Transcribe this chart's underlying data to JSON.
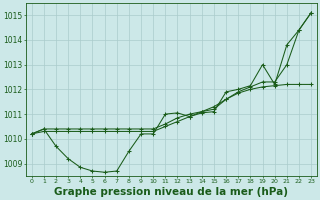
{
  "x": [
    0,
    1,
    2,
    3,
    4,
    5,
    6,
    7,
    8,
    9,
    10,
    11,
    12,
    13,
    14,
    15,
    16,
    17,
    18,
    19,
    20,
    21,
    22,
    23
  ],
  "series": {
    "s1": [
      1010.2,
      1010.4,
      1009.7,
      1009.2,
      1008.85,
      1008.7,
      1008.65,
      1008.7,
      1009.5,
      1010.2,
      1010.2,
      1011.0,
      1011.05,
      1010.9,
      1011.05,
      1011.1,
      1011.9,
      1012.0,
      1012.15,
      1013.0,
      1012.2,
      1013.8,
      1014.4,
      1015.1
    ],
    "s2": [
      1010.2,
      1010.3,
      1010.3,
      1010.3,
      1010.3,
      1010.3,
      1010.3,
      1010.3,
      1010.3,
      1010.3,
      1010.3,
      1010.5,
      1010.7,
      1010.9,
      1011.1,
      1011.3,
      1011.6,
      1011.85,
      1012.0,
      1012.1,
      1012.15,
      1012.2,
      1012.2,
      1012.2
    ],
    "s3": [
      1010.2,
      1010.4,
      1010.4,
      1010.4,
      1010.4,
      1010.4,
      1010.4,
      1010.4,
      1010.4,
      1010.4,
      1010.4,
      1010.6,
      1010.85,
      1011.0,
      1011.1,
      1011.2,
      1011.6,
      1011.9,
      1012.1,
      1012.3,
      1012.3,
      1013.0,
      1014.4,
      1015.1
    ]
  },
  "ylim": [
    1008.5,
    1015.5
  ],
  "yticks": [
    1009,
    1010,
    1011,
    1012,
    1013,
    1014,
    1015
  ],
  "xticks": [
    0,
    1,
    2,
    3,
    4,
    5,
    6,
    7,
    8,
    9,
    10,
    11,
    12,
    13,
    14,
    15,
    16,
    17,
    18,
    19,
    20,
    21,
    22,
    23
  ],
  "line_color": "#1a5c1a",
  "bg_color": "#cce8e8",
  "grid_color": "#aacccc",
  "title": "Graphe pression niveau de la mer (hPa)",
  "title_color": "#1a5c1a",
  "title_fontsize": 7.5
}
